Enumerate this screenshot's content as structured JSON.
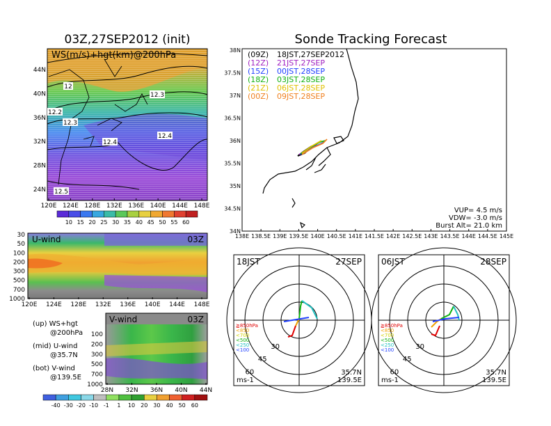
{
  "left_title": "03Z,27SEP2012 (init)",
  "right_title": "Sonde Tracking Forecast",
  "map200": {
    "label": "WS(m/s)+hgt(km)@200hPa",
    "xticks": [
      "120E",
      "124E",
      "128E",
      "132E",
      "136E",
      "140E",
      "144E",
      "148E"
    ],
    "yticks": [
      "24N",
      "28N",
      "32N",
      "36N",
      "40N",
      "44N"
    ],
    "contour_labels": [
      "12",
      "12.2",
      "12.3",
      "12.3",
      "12.4",
      "12.4",
      "12.5"
    ]
  },
  "ws_colorbar": {
    "labels": [
      "10",
      "15",
      "20",
      "25",
      "30",
      "35",
      "40",
      "45",
      "50",
      "55",
      "60"
    ]
  },
  "uwind": {
    "label": "U-wind",
    "time": "03Z",
    "yticks": [
      "30",
      "50",
      "100",
      "200",
      "300",
      "500",
      "700",
      "1000"
    ],
    "xticks": [
      "120E",
      "124E",
      "128E",
      "132E",
      "136E",
      "140E",
      "144E",
      "148E"
    ]
  },
  "vwind": {
    "label": "V-wind",
    "time": "03Z",
    "yticks": [
      "100",
      "200",
      "300",
      "500",
      "700",
      "1000"
    ],
    "xticks": [
      "28N",
      "32N",
      "36N",
      "40N",
      "44N"
    ]
  },
  "legend_notes": [
    {
      "line1": "(up) WS+hgt",
      "line2": "@200hPa"
    },
    {
      "line1": "(mid) U-wind",
      "line2": "@35.7N"
    },
    {
      "line1": "(bot) V-wind",
      "line2": "@139.5E"
    }
  ],
  "uv_colorbar": {
    "labels": [
      "-40",
      "-30",
      "-20",
      "-10",
      "-1",
      "1",
      "10",
      "20",
      "30",
      "40",
      "50",
      "60"
    ]
  },
  "track_map": {
    "xticks": [
      "138E",
      "138.5E",
      "139E",
      "139.5E",
      "140E",
      "140.5E",
      "141E",
      "141.5E",
      "142E",
      "142.5E",
      "143E",
      "143.5E",
      "144E",
      "144.5E",
      "145E"
    ],
    "yticks": [
      "34N",
      "34.5N",
      "35N",
      "35.5N",
      "36N",
      "36.5N",
      "37N",
      "37.5N",
      "38N"
    ],
    "launches": [
      {
        "code": "(09Z)",
        "time": "18JST,27SEP2012",
        "color": "#000000"
      },
      {
        "code": "(12Z)",
        "time": "21JST,27SEP",
        "color": "#a020c0"
      },
      {
        "code": "(15Z)",
        "time": "00JST,28SEP",
        "color": "#2040ff"
      },
      {
        "code": "(18Z)",
        "time": "03JST,28SEP",
        "color": "#10b010"
      },
      {
        "code": "(21Z)",
        "time": "06JST,28SEP",
        "color": "#e0c000"
      },
      {
        "code": "(00Z)",
        "time": "09JST,28SEP",
        "color": "#f08020"
      }
    ],
    "params": [
      "VUP= 4.5 m/s",
      "VDW= -3.0 m/s",
      "Burst Alt= 21.0 km"
    ]
  },
  "hodo1": {
    "time": "18JST",
    "date": "27SEP",
    "rings": [
      "30",
      "45",
      "60"
    ],
    "levels": [
      {
        "label": "≧850hPa",
        "color": "#e00000"
      },
      {
        "label": "<850",
        "color": "#f0a000"
      },
      {
        "label": "<700",
        "color": "#d0d000"
      },
      {
        "label": "<500",
        "color": "#10b010"
      },
      {
        "label": "<250",
        "color": "#20c0c0"
      },
      {
        "label": "<100",
        "color": "#2040ff"
      }
    ],
    "loc1": "35.7N",
    "loc2": "139.5E",
    "unit": "ms-1"
  },
  "hodo2": {
    "time": "06JST",
    "date": "28SEP",
    "rings": [
      "30",
      "45",
      "60"
    ],
    "levels": [
      {
        "label": "≧850hPa",
        "color": "#e00000"
      },
      {
        "label": "<850",
        "color": "#f0a000"
      },
      {
        "label": "<700",
        "color": "#d0d000"
      },
      {
        "label": "<500",
        "color": "#10b010"
      },
      {
        "label": "<250",
        "color": "#20c0c0"
      },
      {
        "label": "<100",
        "color": "#2040ff"
      }
    ],
    "loc1": "35.7N",
    "loc2": "139.5E",
    "unit": "ms-1"
  }
}
